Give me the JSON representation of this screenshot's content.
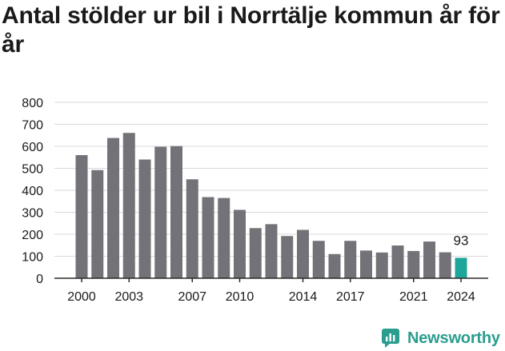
{
  "title": "Antal stölder ur bil i Norrtälje kommun år för år",
  "brand": {
    "name": "Newsworthy",
    "icon": "newsworthy-logo-icon"
  },
  "colors": {
    "bar": "#737278",
    "highlight": "#1fa69a",
    "grid": "#d9d9d9",
    "axis": "#2b2b2b",
    "text": "#1a1a1a"
  },
  "chart_data": {
    "type": "bar",
    "categories": [
      "2000",
      "2001",
      "2002",
      "2003",
      "2004",
      "2005",
      "2006",
      "2007",
      "2008",
      "2009",
      "2010",
      "2011",
      "2012",
      "2013",
      "2014",
      "2015",
      "2016",
      "2017",
      "2018",
      "2019",
      "2020",
      "2021",
      "2022",
      "2023",
      "2024"
    ],
    "values": [
      560,
      492,
      638,
      661,
      540,
      598,
      601,
      450,
      369,
      365,
      311,
      228,
      246,
      192,
      220,
      170,
      110,
      170,
      126,
      117,
      149,
      124,
      167,
      118,
      93
    ],
    "xtick_labels": [
      "2000",
      "2003",
      "2007",
      "2010",
      "2014",
      "2017",
      "2021",
      "2024"
    ],
    "yticks": [
      0,
      100,
      200,
      300,
      400,
      500,
      600,
      700,
      800
    ],
    "ylim": [
      0,
      800
    ],
    "highlight_index": 24,
    "data_labels": [
      {
        "index": 24,
        "text": "93"
      }
    ],
    "grid": true,
    "legend": "none",
    "xlabel": "",
    "ylabel": ""
  }
}
